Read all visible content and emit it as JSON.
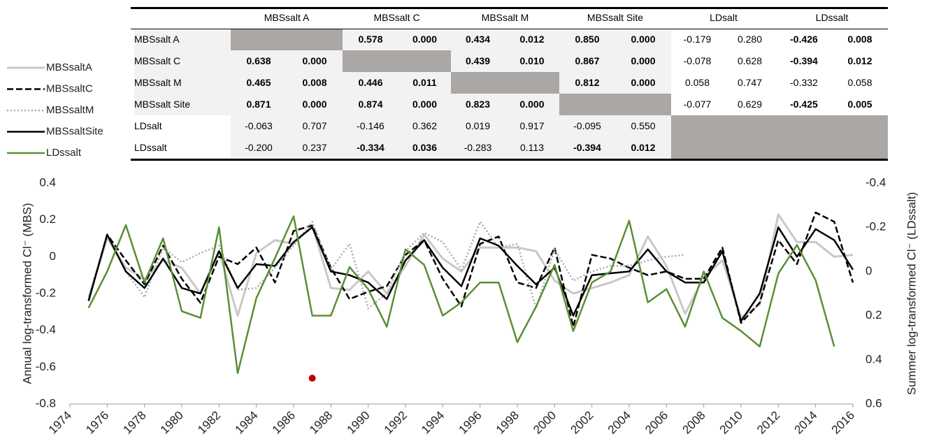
{
  "table": {
    "column_groups": [
      "MBSsalt A",
      "MBSsalt C",
      "MBSsalt M",
      "MBSsalt Site",
      "LDsalt",
      "LDssalt"
    ],
    "rows": [
      {
        "label": "MBSsalt A",
        "cells": [
          null,
          null,
          "0.578",
          "0.000",
          "0.434",
          "0.012",
          "0.850",
          "0.000",
          "-0.179",
          "0.280",
          "-0.426",
          "0.008"
        ],
        "bold": [
          false,
          true,
          true,
          true,
          false,
          true
        ]
      },
      {
        "label": "MBSsalt C",
        "cells": [
          "0.638",
          "0.000",
          null,
          null,
          "0.439",
          "0.010",
          "0.867",
          "0.000",
          "-0.078",
          "0.628",
          "-0.394",
          "0.012"
        ],
        "bold": [
          true,
          false,
          true,
          true,
          false,
          true
        ]
      },
      {
        "label": "MBSsalt M",
        "cells": [
          "0.465",
          "0.008",
          "0.446",
          "0.011",
          null,
          null,
          "0.812",
          "0.000",
          "0.058",
          "0.747",
          "-0.332",
          "0.058"
        ],
        "bold": [
          true,
          true,
          false,
          true,
          false,
          false
        ]
      },
      {
        "label": "MBSsalt Site",
        "cells": [
          "0.871",
          "0.000",
          "0.874",
          "0.000",
          "0.823",
          "0.000",
          null,
          null,
          "-0.077",
          "0.629",
          "-0.425",
          "0.005"
        ],
        "bold": [
          true,
          true,
          true,
          false,
          false,
          true
        ]
      },
      {
        "label": "LDsalt",
        "cells": [
          "-0.063",
          "0.707",
          "-0.146",
          "0.362",
          "0.019",
          "0.917",
          "-0.095",
          "0.550",
          null,
          null,
          null,
          null
        ],
        "bold": [
          false,
          false,
          false,
          false,
          false,
          false
        ]
      },
      {
        "label": "LDssalt",
        "cells": [
          "-0.200",
          "0.237",
          "-0.334",
          "0.036",
          "-0.283",
          "0.113",
          "-0.394",
          "0.012",
          null,
          null,
          null,
          null
        ],
        "bold": [
          false,
          true,
          false,
          true,
          false,
          false
        ]
      }
    ]
  },
  "chart_data": {
    "type": "line",
    "ylabel": "Annual log-transformed Cl⁻ (MBS)",
    "y2label": "Summer log-transformed Cl⁻ (LDssalt)",
    "x": [
      1975,
      1976,
      1977,
      1978,
      1979,
      1980,
      1981,
      1982,
      1983,
      1984,
      1985,
      1986,
      1987,
      1988,
      1989,
      1990,
      1991,
      1992,
      1993,
      1994,
      1995,
      1996,
      1997,
      1998,
      1999,
      2000,
      2001,
      2002,
      2003,
      2004,
      2005,
      2006,
      2007,
      2008,
      2009,
      2010,
      2011,
      2012,
      2013,
      2014,
      2015,
      2016
    ],
    "xlim": [
      1974,
      2016
    ],
    "xticks": [
      1974,
      1976,
      1978,
      1980,
      1982,
      1984,
      1986,
      1988,
      1990,
      1992,
      1994,
      1996,
      1998,
      2000,
      2002,
      2004,
      2006,
      2008,
      2010,
      2012,
      2014,
      2016
    ],
    "ylim": [
      -0.8,
      0.4
    ],
    "yticks": [
      -0.8,
      -0.6,
      -0.4,
      -0.2,
      0,
      0.2,
      0.4
    ],
    "y2lim": [
      0.6,
      -0.4
    ],
    "y2ticks": [
      0.6,
      0.4,
      0.2,
      0,
      -0.2,
      -0.4
    ],
    "series": [
      {
        "name": "MBSsaltA",
        "color": "#c8c8c8",
        "dash": "solid",
        "values": [
          -0.22,
          0.1,
          -0.06,
          -0.12,
          -0.02,
          -0.06,
          -0.2,
          0.03,
          -0.32,
          0.02,
          0.09,
          0.07,
          0.17,
          -0.17,
          -0.18,
          -0.08,
          -0.2,
          -0.05,
          0.12,
          -0.01,
          -0.08,
          0.05,
          0.05,
          0.05,
          0.03,
          -0.13,
          -0.2,
          -0.17,
          -0.14,
          -0.1,
          0.11,
          -0.05,
          -0.31,
          -0.11,
          -0.02,
          -0.33,
          -0.26,
          0.23,
          0.08,
          0.08,
          0.0,
          0.01
        ]
      },
      {
        "name": "MBSsaltC",
        "color": "#000000",
        "dash": "dashed",
        "values": [
          -0.24,
          0.12,
          -0.02,
          -0.15,
          0.06,
          -0.12,
          -0.25,
          0.0,
          -0.04,
          0.05,
          -0.14,
          0.14,
          0.17,
          -0.06,
          -0.23,
          -0.19,
          -0.16,
          0.01,
          0.09,
          -0.12,
          -0.27,
          0.07,
          0.11,
          -0.14,
          -0.17,
          0.05,
          -0.38,
          0.01,
          -0.01,
          -0.06,
          -0.1,
          -0.08,
          -0.12,
          -0.12,
          0.05,
          -0.36,
          -0.25,
          0.09,
          -0.04,
          0.24,
          0.19,
          -0.14
        ]
      },
      {
        "name": "MBSsaltM",
        "color": "#aaaaaa",
        "dash": "dotted",
        "values": [
          -0.24,
          0.12,
          -0.08,
          -0.22,
          0.05,
          -0.03,
          0.02,
          0.06,
          -0.18,
          -0.17,
          -0.06,
          0.06,
          0.19,
          -0.07,
          0.07,
          -0.28,
          -0.2,
          0.03,
          0.13,
          0.08,
          -0.07,
          0.19,
          0.05,
          0.07,
          -0.28,
          0.04,
          -0.13,
          -0.08,
          -0.05,
          -0.05,
          -0.02,
          0.0,
          0.01,
          null,
          null,
          null,
          null,
          null,
          null,
          null,
          null,
          null
        ]
      },
      {
        "name": "MBSsaltSite",
        "color": "#000000",
        "dash": "solid",
        "values": [
          -0.24,
          0.12,
          -0.08,
          -0.17,
          -0.01,
          -0.17,
          -0.2,
          0.03,
          -0.17,
          -0.04,
          -0.05,
          0.08,
          0.16,
          -0.08,
          -0.1,
          -0.14,
          -0.23,
          -0.02,
          0.09,
          -0.06,
          -0.16,
          0.1,
          0.06,
          -0.05,
          -0.15,
          -0.06,
          -0.32,
          -0.1,
          -0.09,
          -0.08,
          0.04,
          -0.08,
          -0.14,
          -0.14,
          0.03,
          -0.35,
          -0.2,
          0.16,
          0.0,
          0.15,
          0.09,
          -0.07
        ]
      },
      {
        "name": "LDssalt",
        "color": "#5a8f35",
        "dash": "solid",
        "axis": "y2",
        "values": [
          0.165,
          0.0,
          -0.21,
          0.05,
          -0.15,
          0.18,
          0.21,
          -0.2,
          0.46,
          0.12,
          -0.06,
          -0.25,
          0.2,
          0.2,
          -0.02,
          0.08,
          0.25,
          -0.1,
          -0.03,
          0.2,
          0.14,
          0.05,
          0.05,
          0.32,
          0.16,
          -0.03,
          0.27,
          0.05,
          0.0,
          -0.23,
          0.14,
          0.08,
          0.25,
          0.0,
          0.21,
          0.27,
          0.34,
          0.01,
          -0.12,
          0.04,
          0.34,
          null
        ]
      }
    ],
    "highlight_point": {
      "x": 1987,
      "y": -0.66,
      "color": "#c00000"
    }
  }
}
